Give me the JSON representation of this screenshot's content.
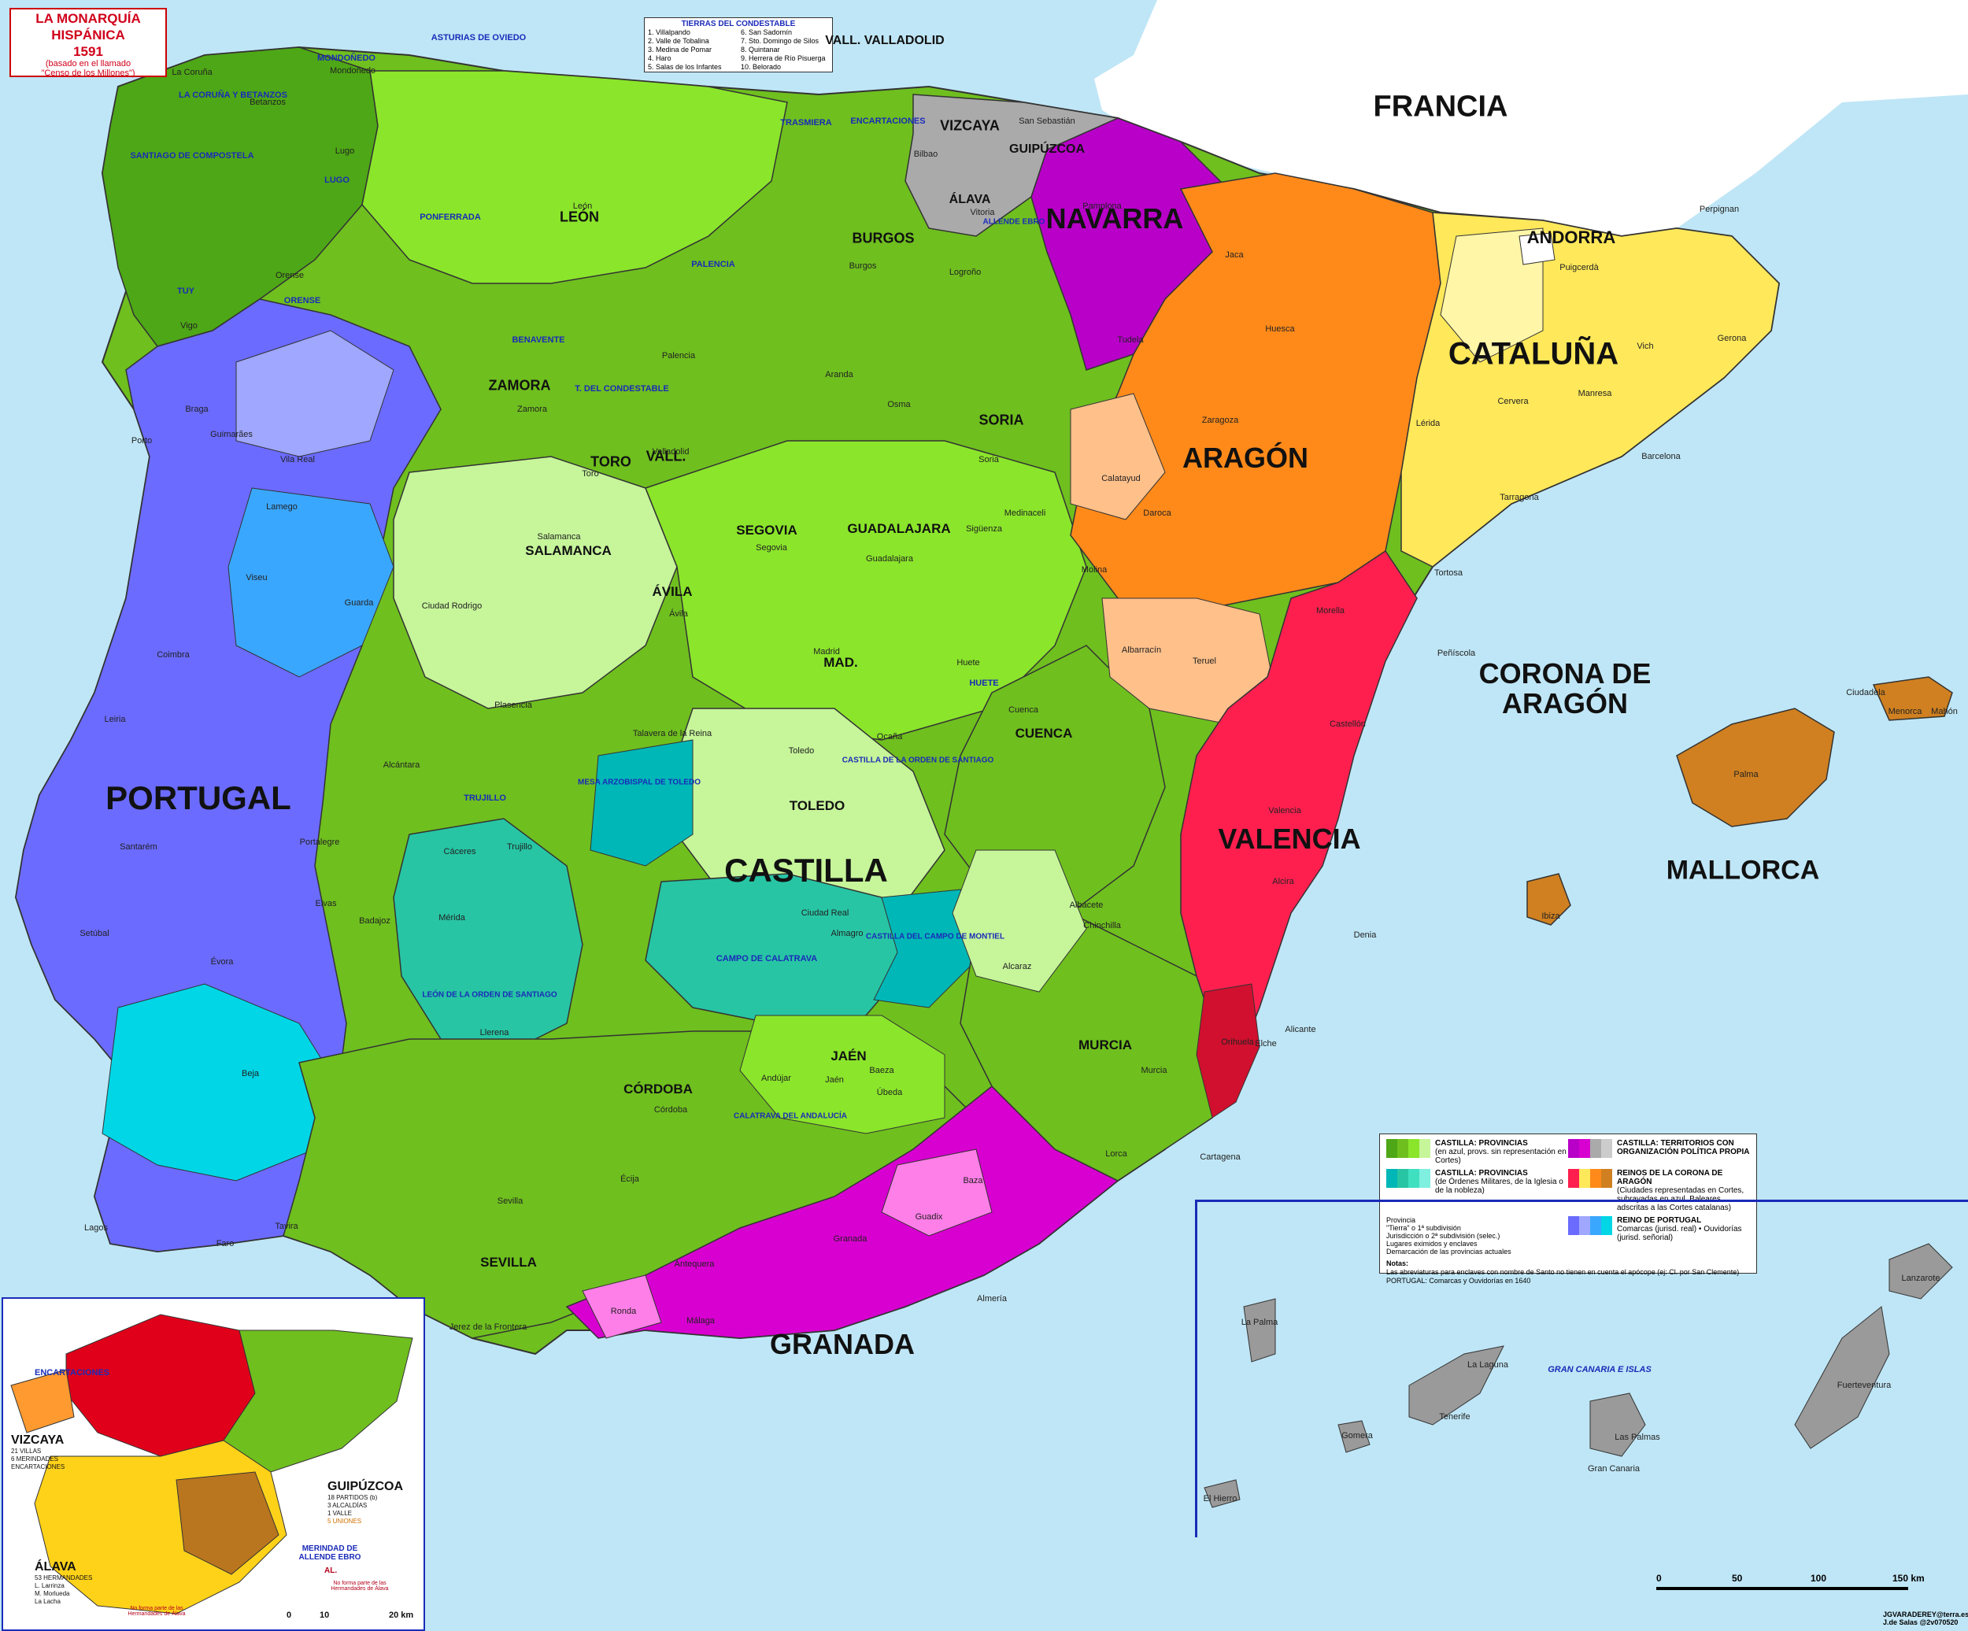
{
  "title": {
    "line1": "LA MONARQUÍA",
    "line2": "HISPÁNICA",
    "year": "1591",
    "sub1": "(basado en el llamado",
    "sub2": "\"Censo de los Millones\")"
  },
  "condestable": {
    "heading": "TIERRAS DEL CONDESTABLE",
    "col1": [
      "1. Villalpando",
      "2. Valle de Tobalina",
      "3. Medina de Pomar",
      "4. Haro",
      "5. Salas de los Infantes"
    ],
    "col2": [
      "6. San Sadornín",
      "7. Sto. Domingo de Silos",
      "8. Quintanar",
      "9. Herrera de Río Pisuerga",
      "10. Belorado"
    ]
  },
  "countries": {
    "francia": "FRANCIA",
    "portugal": "PORTUGAL",
    "castilla": "CASTILLA",
    "corona": "CORONA DE",
    "corona2": "ARAGÓN",
    "mallorca": "MALLORCA",
    "andorra": "ANDORRA"
  },
  "regions": {
    "navarra": "NAVARRA",
    "aragon": "ARAGÓN",
    "cataluna": "CATALUÑA",
    "valencia": "VALENCIA",
    "granada": "GRANADA",
    "vizcaya": "VIZCAYA",
    "guipuzcoa": "GUIPÚZCOA",
    "alava": "ÁLAVA",
    "burgos": "BURGOS",
    "leon": "LEÓN",
    "zamora": "ZAMORA",
    "toro": "TORO",
    "vall": "VALL.",
    "soria": "SORIA",
    "segovia": "SEGOVIA",
    "avila": "ÁVILA",
    "guadalajara": "GUADALAJARA",
    "salamanca": "SALAMANCA",
    "mad": "MAD.",
    "toledo": "TOLEDO",
    "cuenca": "CUENCA",
    "murcia": "MURCIA",
    "jaen": "JAÉN",
    "cordoba": "CÓRDOBA",
    "sevilla": "SEVILLA",
    "vallvalladolid": "VALL. VALLADOLID"
  },
  "blue_labels": {
    "asturias": "ASTURIAS DE OVIEDO",
    "mondonedo": "MONDOÑEDO",
    "coruna": "LA CORUÑA Y BETANZOS",
    "santiago": "SANTIAGO DE COMPOSTELA",
    "lugo": "LUGO",
    "tuy": "TUY",
    "orense": "ORENSE",
    "ponferrada": "PONFERRADA",
    "trasmiera": "TRASMIERA",
    "encartaciones": "ENCARTACIONES",
    "palencia": "PALENCIA",
    "benavente": "BENAVENTE",
    "condestable": "T. DEL CONDESTABLE",
    "huete": "HUETE",
    "mesa": "MESA ARZOBISPAL DE TOLEDO",
    "santiago_orden": "CASTILLA DE LA ORDEN DE SANTIAGO",
    "trujillo": "TRUJILLO",
    "calatrava": "CAMPO DE CALATRAVA",
    "montiel": "CASTILLA DEL CAMPO DE MONTIEL",
    "leon_orden": "LEÓN DE LA ORDEN DE SANTIAGO",
    "calatrava_and": "CALATRAVA DEL ANDALUCÍA",
    "allende": "ALLENDE EBRO",
    "canarias": "GRAN CANARIA E ISLAS"
  },
  "places": [
    {
      "n": "La Coruña"
    },
    {
      "n": "Betanzos"
    },
    {
      "n": "Mondoñedo"
    },
    {
      "n": "Lugo"
    },
    {
      "n": "Orense"
    },
    {
      "n": "Vigo"
    },
    {
      "n": "Braga"
    },
    {
      "n": "Porto"
    },
    {
      "n": "Guimarães"
    },
    {
      "n": "Vila Real"
    },
    {
      "n": "Lamego"
    },
    {
      "n": "Viseu"
    },
    {
      "n": "Guarda"
    },
    {
      "n": "Coimbra"
    },
    {
      "n": "Leiria"
    },
    {
      "n": "Santarém"
    },
    {
      "n": "Setúbal"
    },
    {
      "n": "Évora"
    },
    {
      "n": "Beja"
    },
    {
      "n": "Lagos"
    },
    {
      "n": "Faro"
    },
    {
      "n": "Tavira"
    },
    {
      "n": "Elvas"
    },
    {
      "n": "Portalegre"
    },
    {
      "n": "Badajoz"
    },
    {
      "n": "Mérida"
    },
    {
      "n": "Cáceres"
    },
    {
      "n": "Trujillo"
    },
    {
      "n": "Plasencia"
    },
    {
      "n": "Salamanca"
    },
    {
      "n": "Zamora"
    },
    {
      "n": "Toro"
    },
    {
      "n": "Valladolid"
    },
    {
      "n": "Palencia"
    },
    {
      "n": "León"
    },
    {
      "n": "Burgos"
    },
    {
      "n": "Soria"
    },
    {
      "n": "Segovia"
    },
    {
      "n": "Ávila"
    },
    {
      "n": "Madrid"
    },
    {
      "n": "Toledo"
    },
    {
      "n": "Cuenca"
    },
    {
      "n": "Huete"
    },
    {
      "n": "Guadalajara"
    },
    {
      "n": "Sigüenza"
    },
    {
      "n": "Logroño"
    },
    {
      "n": "Vitoria"
    },
    {
      "n": "Bilbao"
    },
    {
      "n": "San Sebastián"
    },
    {
      "n": "Pamplona"
    },
    {
      "n": "Tudela"
    },
    {
      "n": "Jaca"
    },
    {
      "n": "Huesca"
    },
    {
      "n": "Zaragoza"
    },
    {
      "n": "Calatayud"
    },
    {
      "n": "Daroca"
    },
    {
      "n": "Teruel"
    },
    {
      "n": "Albarracín"
    },
    {
      "n": "Lérida"
    },
    {
      "n": "Barcelona"
    },
    {
      "n": "Tarragona"
    },
    {
      "n": "Tortosa"
    },
    {
      "n": "Gerona"
    },
    {
      "n": "Vich"
    },
    {
      "n": "Manresa"
    },
    {
      "n": "Cervera"
    },
    {
      "n": "Puigcerdà"
    },
    {
      "n": "Perpignan"
    },
    {
      "n": "Morella"
    },
    {
      "n": "Peñíscola"
    },
    {
      "n": "Castellón"
    },
    {
      "n": "Valencia"
    },
    {
      "n": "Alcira"
    },
    {
      "n": "Denia"
    },
    {
      "n": "Alicante"
    },
    {
      "n": "Orihuela"
    },
    {
      "n": "Elche"
    },
    {
      "n": "Murcia"
    },
    {
      "n": "Lorca"
    },
    {
      "n": "Cartagena"
    },
    {
      "n": "Albacete"
    },
    {
      "n": "Chinchilla"
    },
    {
      "n": "Alcaraz"
    },
    {
      "n": "Ciudad Real"
    },
    {
      "n": "Almagro"
    },
    {
      "n": "Jaén"
    },
    {
      "n": "Baeza"
    },
    {
      "n": "Úbeda"
    },
    {
      "n": "Andújar"
    },
    {
      "n": "Córdoba"
    },
    {
      "n": "Écija"
    },
    {
      "n": "Sevilla"
    },
    {
      "n": "Jerez de la Frontera"
    },
    {
      "n": "Antequera"
    },
    {
      "n": "Ronda"
    },
    {
      "n": "Málaga"
    },
    {
      "n": "Granada"
    },
    {
      "n": "Guadix"
    },
    {
      "n": "Almería"
    },
    {
      "n": "Baza"
    },
    {
      "n": "Llerena"
    },
    {
      "n": "Ciudad Rodrigo"
    },
    {
      "n": "Aranda"
    },
    {
      "n": "Osma"
    },
    {
      "n": "Medinaceli"
    },
    {
      "n": "Molina"
    },
    {
      "n": "Ocaña"
    },
    {
      "n": "Talavera de la Reina"
    },
    {
      "n": "Alcántara"
    },
    {
      "n": "Ibiza"
    },
    {
      "n": "Mahón"
    },
    {
      "n": "Palma"
    },
    {
      "n": "Ciudadela"
    },
    {
      "n": "Menorca"
    },
    {
      "n": "Tenerife"
    },
    {
      "n": "La Palma"
    },
    {
      "n": "Gomera"
    },
    {
      "n": "El Hierro"
    },
    {
      "n": "Gran Canaria"
    },
    {
      "n": "Fuerteventura"
    },
    {
      "n": "Lanzarote"
    },
    {
      "n": "La Laguna"
    },
    {
      "n": "Las Palmas"
    }
  ],
  "legend": {
    "castilla_prov": "CASTILLA: PROVINCIAS",
    "castilla_prov_sub": "(en azul, provs. sin representación en Cortes)",
    "castilla_terr": "CASTILLA: TERRITORIOS CON ORGANIZACIÓN POLÍTICA PROPIA",
    "castilla_ord": "CASTILLA: PROVINCIAS",
    "castilla_ord_sub": "(de Órdenes Militares, de la Iglesia o de la nobleza)",
    "aragon": "REINOS DE LA CORONA DE ARAGÓN",
    "aragon_sub": "(Ciudades representadas en Cortes, subrayadas en azul. Baleares adscritas a las Cortes catalanas)",
    "portugal": "REINO DE PORTUGAL",
    "portugal_sub": "Comarcas (jurisd. real)  •  Ouvidorías (jurisd. señorial)",
    "items": [
      "Provincia",
      "\"Tierra\" o 1ª subdivisión",
      "Jurisdicción o 2ª subdivisión (selec.)",
      "Lugares eximidos y enclaves",
      "Demarcación de las provincias actuales"
    ],
    "notes_h": "Notas:",
    "note1": "Las abreviaturas para enclaves con nombre de Santo no tienen en cuenta el apócope (ej: Cl. por San Clemente)",
    "note2": "PORTUGAL: Comarcas y Ouvidorías en 1640"
  },
  "inset": {
    "vizcaya": "VIZCAYA",
    "viz1": "21 VILLAS",
    "viz2": "6 MERINDADES",
    "viz3": "ENCARTACIONES",
    "guipuzcoa": "GUIPÚZCOA",
    "gui1": "18 PARTIDOS (b)",
    "gui2": "3 ALCALDÍAS",
    "gui3": "1 VALLE",
    "gui4": "5 UNIONES",
    "alava": "ÁLAVA",
    "ala1": "53 HERMANDADES",
    "ala2": "L. Larrinza",
    "ala3": "M. Morlueda",
    "ala4": "La Lacha",
    "encart": "ENCARTACIONES",
    "merindad": "MERINDAD DE ALLENDE EBRO",
    "al": "AL.",
    "nota1": "No forma parte de las Hermandades de Álava",
    "nota2": "No forma parte de las Hermandades de Álava",
    "scale": [
      "0",
      "10",
      "20 km"
    ]
  },
  "scale": [
    "0",
    "50",
    "100",
    "150 km"
  ],
  "credits": {
    "l1": "JGVARADEREY@terra.es",
    "l2": "J.de Salas @2v070520"
  },
  "colors": {
    "sea": "#bfe6f6",
    "land_fr": "#ffffff",
    "castilla_a": "#6fbf1f",
    "castilla_b": "#8be52b",
    "castilla_c": "#c6f59a",
    "castilla_d": "#4ea716",
    "orders": "#27c5a4",
    "teal": "#00b7b7",
    "navarra": "#b800c8",
    "granada": "#d800d0",
    "granada_l": "#ff7fe8",
    "aragon": "#ff8a1a",
    "aragon_l": "#ffc08a",
    "cataluna": "#ffe85a",
    "cataluna_l": "#fff6a8",
    "valencia": "#ff1f4f",
    "valencia_d": "#d0102e",
    "mallorca": "#d08020",
    "portugal": "#6b6bff",
    "portugal_l": "#9fa7ff",
    "portugal_c": "#00d6e6",
    "basque": "#aaaaaa",
    "canary": "#9a9a9a"
  }
}
